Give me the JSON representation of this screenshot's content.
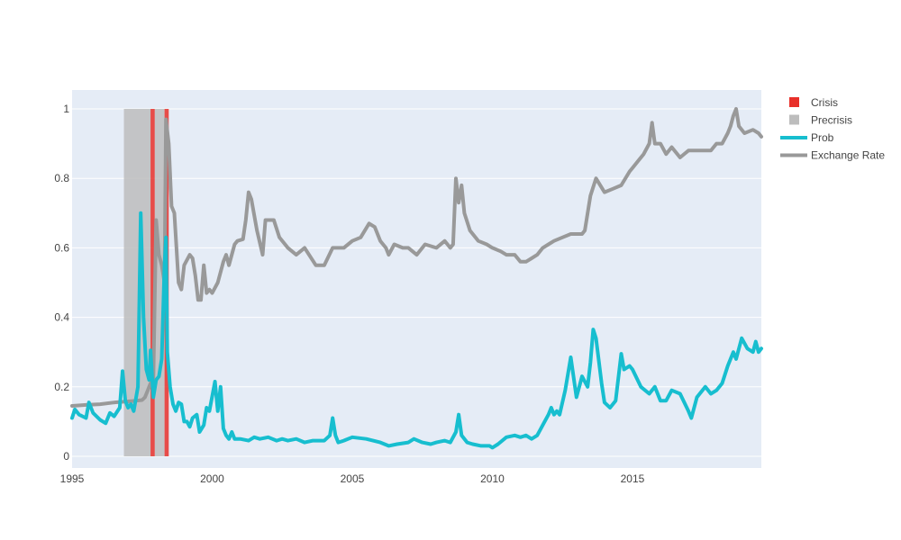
{
  "chart_data": {
    "type": "line",
    "title": "",
    "xlabel": "",
    "ylabel": "",
    "xlim": [
      1995,
      2019.6
    ],
    "ylim": [
      0,
      1
    ],
    "x_ticks": [
      {
        "value": 1995,
        "label": "1995"
      },
      {
        "value": 2000,
        "label": "2000"
      },
      {
        "value": 2005,
        "label": "2005"
      },
      {
        "value": 2010,
        "label": "2010"
      },
      {
        "value": 2015,
        "label": "2015"
      }
    ],
    "y_ticks": [
      {
        "value": 0,
        "label": "0"
      },
      {
        "value": 0.2,
        "label": "0.2"
      },
      {
        "value": 0.4,
        "label": "0.4"
      },
      {
        "value": 0.6,
        "label": "0.6"
      },
      {
        "value": 0.8,
        "label": "0.8"
      },
      {
        "value": 1,
        "label": "1"
      }
    ],
    "grid": true,
    "legend_position": "right",
    "shaded_regions": [
      {
        "name": "Precrisis",
        "color": "#bdbdbd",
        "ranges": [
          [
            1996.85,
            1997.8
          ],
          [
            1997.95,
            1998.3
          ]
        ]
      },
      {
        "name": "Crisis",
        "color": "#e8302a",
        "ranges": [
          [
            1997.8,
            1997.95
          ],
          [
            1998.3,
            1998.45
          ]
        ]
      }
    ],
    "series": [
      {
        "name": "Prob",
        "color": "#17becf",
        "x": [
          1995.0,
          1995.1,
          1995.25,
          1995.5,
          1995.6,
          1995.75,
          1996.0,
          1996.2,
          1996.35,
          1996.5,
          1996.7,
          1996.8,
          1996.9,
          1997.0,
          1997.1,
          1997.2,
          1997.35,
          1997.45,
          1997.55,
          1997.65,
          1997.75,
          1997.8,
          1997.9,
          1998.0,
          1998.1,
          1998.2,
          1998.3,
          1998.35,
          1998.4,
          1998.5,
          1998.6,
          1998.7,
          1998.8,
          1998.9,
          1999.0,
          1999.1,
          1999.2,
          1999.3,
          1999.45,
          1999.55,
          1999.7,
          1999.8,
          1999.9,
          2000.1,
          2000.2,
          2000.3,
          2000.4,
          2000.5,
          2000.6,
          2000.7,
          2000.8,
          2001.0,
          2001.3,
          2001.5,
          2001.7,
          2002.0,
          2002.3,
          2002.5,
          2002.7,
          2003.0,
          2003.3,
          2003.6,
          2004.0,
          2004.2,
          2004.3,
          2004.4,
          2004.5,
          2004.7,
          2005.0,
          2005.5,
          2006.0,
          2006.3,
          2006.6,
          2007.0,
          2007.2,
          2007.5,
          2007.8,
          2008.0,
          2008.3,
          2008.5,
          2008.7,
          2008.8,
          2008.9,
          2009.1,
          2009.3,
          2009.6,
          2009.9,
          2010.0,
          2010.2,
          2010.5,
          2010.8,
          2011.0,
          2011.2,
          2011.4,
          2011.6,
          2011.8,
          2012.0,
          2012.1,
          2012.2,
          2012.3,
          2012.4,
          2012.6,
          2012.8,
          2013.0,
          2013.2,
          2013.4,
          2013.5,
          2013.6,
          2013.7,
          2013.9,
          2014.0,
          2014.2,
          2014.4,
          2014.6,
          2014.7,
          2014.9,
          2015.0,
          2015.3,
          2015.6,
          2015.8,
          2016.0,
          2016.2,
          2016.4,
          2016.7,
          2017.0,
          2017.1,
          2017.3,
          2017.6,
          2017.8,
          2018.0,
          2018.2,
          2018.4,
          2018.6,
          2018.7,
          2018.9,
          2019.1,
          2019.3,
          2019.4,
          2019.5,
          2019.6
        ],
        "y": [
          0.11,
          0.135,
          0.12,
          0.11,
          0.155,
          0.125,
          0.105,
          0.095,
          0.125,
          0.115,
          0.14,
          0.245,
          0.16,
          0.14,
          0.15,
          0.13,
          0.2,
          0.7,
          0.4,
          0.25,
          0.22,
          0.305,
          0.17,
          0.22,
          0.23,
          0.28,
          0.55,
          0.63,
          0.3,
          0.2,
          0.15,
          0.13,
          0.155,
          0.15,
          0.1,
          0.1,
          0.085,
          0.11,
          0.12,
          0.07,
          0.09,
          0.14,
          0.13,
          0.215,
          0.13,
          0.2,
          0.08,
          0.06,
          0.05,
          0.07,
          0.05,
          0.05,
          0.045,
          0.055,
          0.05,
          0.055,
          0.045,
          0.05,
          0.045,
          0.05,
          0.04,
          0.045,
          0.045,
          0.06,
          0.11,
          0.06,
          0.04,
          0.045,
          0.055,
          0.05,
          0.04,
          0.03,
          0.035,
          0.04,
          0.05,
          0.04,
          0.035,
          0.04,
          0.045,
          0.04,
          0.07,
          0.12,
          0.06,
          0.04,
          0.035,
          0.03,
          0.03,
          0.025,
          0.035,
          0.055,
          0.06,
          0.055,
          0.06,
          0.05,
          0.06,
          0.09,
          0.12,
          0.14,
          0.12,
          0.13,
          0.12,
          0.19,
          0.285,
          0.17,
          0.23,
          0.2,
          0.27,
          0.365,
          0.34,
          0.21,
          0.155,
          0.14,
          0.16,
          0.295,
          0.25,
          0.26,
          0.25,
          0.2,
          0.18,
          0.2,
          0.16,
          0.16,
          0.19,
          0.18,
          0.13,
          0.11,
          0.17,
          0.2,
          0.18,
          0.19,
          0.21,
          0.26,
          0.3,
          0.28,
          0.34,
          0.31,
          0.3,
          0.33,
          0.3,
          0.31
        ]
      },
      {
        "name": "Exchange Rate",
        "color": "#999999",
        "x": [
          1995.0,
          1995.5,
          1996.0,
          1996.5,
          1997.0,
          1997.3,
          1997.5,
          1997.6,
          1997.7,
          1997.8,
          1997.9,
          1998.0,
          1998.1,
          1998.2,
          1998.3,
          1998.35,
          1998.45,
          1998.55,
          1998.65,
          1998.8,
          1998.9,
          1999.0,
          1999.2,
          1999.3,
          1999.4,
          1999.5,
          1999.6,
          1999.7,
          1999.8,
          1999.9,
          2000.0,
          2000.2,
          2000.4,
          2000.5,
          2000.6,
          2000.8,
          2000.9,
          2001.1,
          2001.2,
          2001.3,
          2001.4,
          2001.6,
          2001.8,
          2001.9,
          2002.2,
          2002.4,
          2002.7,
          2003.0,
          2003.3,
          2003.7,
          2004.0,
          2004.3,
          2004.7,
          2005.0,
          2005.3,
          2005.6,
          2005.8,
          2006.0,
          2006.2,
          2006.3,
          2006.5,
          2006.8,
          2007.0,
          2007.3,
          2007.6,
          2008.0,
          2008.3,
          2008.5,
          2008.6,
          2008.7,
          2008.8,
          2008.9,
          2009.0,
          2009.2,
          2009.5,
          2009.8,
          2010.0,
          2010.3,
          2010.5,
          2010.8,
          2011.0,
          2011.2,
          2011.4,
          2011.6,
          2011.8,
          2012.0,
          2012.2,
          2012.5,
          2012.8,
          2013.0,
          2013.2,
          2013.3,
          2013.5,
          2013.7,
          2014.0,
          2014.3,
          2014.6,
          2014.9,
          2015.0,
          2015.2,
          2015.4,
          2015.6,
          2015.7,
          2015.8,
          2016.0,
          2016.2,
          2016.4,
          2016.7,
          2017.0,
          2017.3,
          2017.6,
          2017.8,
          2018.0,
          2018.2,
          2018.4,
          2018.5,
          2018.6,
          2018.7,
          2018.8,
          2019.0,
          2019.3,
          2019.5,
          2019.6
        ],
        "y": [
          0.145,
          0.148,
          0.15,
          0.155,
          0.158,
          0.16,
          0.162,
          0.17,
          0.19,
          0.21,
          0.22,
          0.68,
          0.58,
          0.55,
          0.5,
          0.97,
          0.9,
          0.72,
          0.7,
          0.5,
          0.48,
          0.55,
          0.58,
          0.57,
          0.52,
          0.45,
          0.45,
          0.55,
          0.47,
          0.48,
          0.47,
          0.5,
          0.56,
          0.58,
          0.55,
          0.61,
          0.62,
          0.625,
          0.68,
          0.76,
          0.74,
          0.65,
          0.58,
          0.68,
          0.68,
          0.63,
          0.6,
          0.58,
          0.6,
          0.55,
          0.55,
          0.6,
          0.6,
          0.62,
          0.63,
          0.67,
          0.66,
          0.62,
          0.6,
          0.58,
          0.61,
          0.6,
          0.6,
          0.58,
          0.61,
          0.6,
          0.62,
          0.6,
          0.61,
          0.8,
          0.73,
          0.78,
          0.7,
          0.65,
          0.62,
          0.61,
          0.6,
          0.59,
          0.58,
          0.58,
          0.56,
          0.56,
          0.57,
          0.58,
          0.6,
          0.61,
          0.62,
          0.63,
          0.64,
          0.64,
          0.64,
          0.65,
          0.75,
          0.8,
          0.76,
          0.77,
          0.78,
          0.82,
          0.83,
          0.85,
          0.87,
          0.9,
          0.96,
          0.9,
          0.9,
          0.87,
          0.89,
          0.86,
          0.88,
          0.88,
          0.88,
          0.88,
          0.9,
          0.9,
          0.93,
          0.95,
          0.98,
          1.0,
          0.95,
          0.93,
          0.94,
          0.93,
          0.92
        ]
      }
    ],
    "legend": [
      {
        "name": "Crisis",
        "symbol": "square",
        "color": "#e8302a"
      },
      {
        "name": "Precrisis",
        "symbol": "square",
        "color": "#bdbdbd"
      },
      {
        "name": "Prob",
        "symbol": "line",
        "color": "#17becf"
      },
      {
        "name": "Exchange Rate",
        "symbol": "line",
        "color": "#999999"
      }
    ]
  }
}
